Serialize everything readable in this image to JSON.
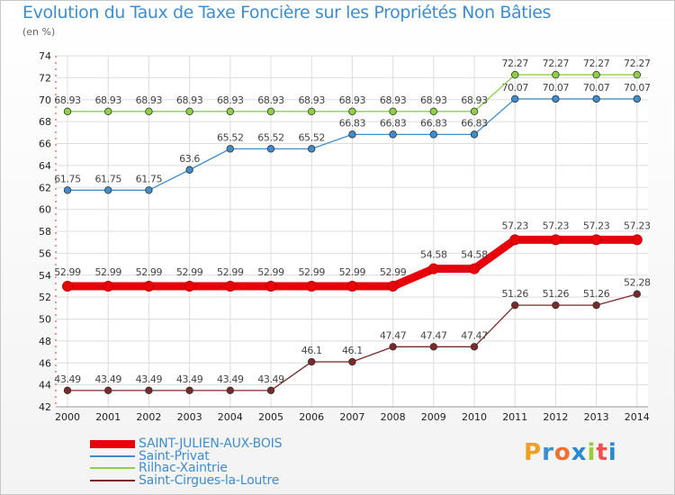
{
  "title": "Evolution du Taux de Taxe Foncière sur les Propriétés Non Bâties",
  "subtitle": "(en %)",
  "brand": {
    "letters": [
      "P",
      "r",
      "o",
      "x",
      "i",
      "t",
      "i"
    ],
    "colors": [
      "#f0a020",
      "#3e8ecf",
      "#f07030",
      "#2a8ad0",
      "#9acd32",
      "#f05050",
      "#2a8ad0"
    ]
  },
  "chart_data": {
    "type": "line",
    "title": "Evolution du Taux de Taxe Foncière sur les Propriétés Non Bâties",
    "ylabel": "(en %)",
    "xlabel": "",
    "ylim": [
      42,
      74
    ],
    "yticks": [
      42,
      44,
      46,
      48,
      50,
      52,
      54,
      56,
      58,
      60,
      62,
      64,
      66,
      68,
      70,
      72,
      74
    ],
    "grid": true,
    "legend_position": "bottom-left",
    "x": [
      "2000",
      "2001",
      "2002",
      "2003",
      "2004",
      "2005",
      "2006",
      "2007",
      "2008",
      "2009",
      "2010",
      "2011",
      "2012",
      "2013",
      "2014"
    ],
    "series": [
      {
        "name": "SAINT-JULIEN-AUX-BOIS",
        "color": "#e8000a",
        "emphasis": true,
        "values": [
          52.99,
          52.99,
          52.99,
          52.99,
          52.99,
          52.99,
          52.99,
          52.99,
          52.99,
          54.58,
          54.58,
          57.23,
          57.23,
          57.23,
          57.23
        ],
        "labels": [
          "52.99",
          "52.99",
          "52.99",
          "52.99",
          "52.99",
          "52.99",
          "52.99",
          "52.99",
          "52.99",
          "54.58",
          "54.58",
          "57.23",
          "57.23",
          "57.23",
          "57.23"
        ]
      },
      {
        "name": "Saint-Privat",
        "color": "#3e8ecf",
        "emphasis": false,
        "values": [
          61.75,
          61.75,
          61.75,
          63.6,
          65.52,
          65.52,
          65.52,
          66.83,
          66.83,
          66.83,
          66.83,
          70.07,
          70.07,
          70.07,
          70.07
        ],
        "labels": [
          "61.75",
          "61.75",
          "61.75",
          "63.6",
          "65.52",
          "65.52",
          "65.52",
          "66.83",
          "66.83",
          "66.83",
          "66.83",
          "70.07",
          "70.07",
          "70.07",
          "70.07"
        ]
      },
      {
        "name": "Rilhac-Xaintrie",
        "color": "#8fd04a",
        "emphasis": false,
        "values": [
          68.93,
          68.93,
          68.93,
          68.93,
          68.93,
          68.93,
          68.93,
          68.93,
          68.93,
          68.93,
          68.93,
          72.27,
          72.27,
          72.27,
          72.27
        ],
        "labels": [
          "68.93",
          "68.93",
          "68.93",
          "68.93",
          "68.93",
          "68.93",
          "68.93",
          "68.93",
          "68.93",
          "68.93",
          "68.93",
          "72.27",
          "72.27",
          "72.27",
          "72.27"
        ]
      },
      {
        "name": "Saint-Cirgues-la-Loutre",
        "color": "#7a2a2a",
        "emphasis": false,
        "values": [
          43.49,
          43.49,
          43.49,
          43.49,
          43.49,
          43.49,
          46.1,
          46.1,
          47.47,
          47.47,
          47.47,
          51.26,
          51.26,
          51.26,
          52.28
        ],
        "labels": [
          "43.49",
          "43.49",
          "43.49",
          "43.49",
          "43.49",
          "43.49",
          "46.1",
          "46.1",
          "47.47",
          "47.47",
          "47.47",
          "51.26",
          "51.26",
          "51.26",
          "52.28"
        ]
      }
    ]
  }
}
